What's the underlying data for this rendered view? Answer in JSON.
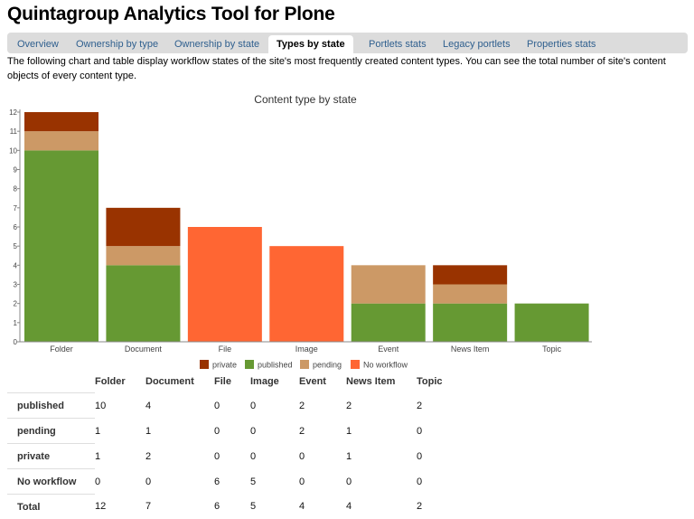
{
  "page": {
    "title": "Quintagroup Analytics Tool for Plone",
    "description": "The following chart and table display workflow states of the site's most frequently created content types. You can see the total number of site's content objects of every content type."
  },
  "tabs": [
    {
      "label": "Overview",
      "active": false
    },
    {
      "label": "Ownership by type",
      "active": false
    },
    {
      "label": "Ownership by state",
      "active": false
    },
    {
      "label": "Types by state",
      "active": true
    },
    {
      "label": "Portlets stats",
      "active": false
    },
    {
      "label": "Legacy portlets",
      "active": false
    },
    {
      "label": "Properties stats",
      "active": false
    }
  ],
  "chart_data": {
    "type": "bar",
    "stacked": true,
    "title": "Content type by state",
    "categories": [
      "Folder",
      "Document",
      "File",
      "Image",
      "Event",
      "News Item",
      "Topic"
    ],
    "series": [
      {
        "name": "published",
        "color": "#669933",
        "values": [
          10,
          4,
          0,
          0,
          2,
          2,
          2
        ]
      },
      {
        "name": "pending",
        "color": "#cc9966",
        "values": [
          1,
          1,
          0,
          0,
          2,
          1,
          0
        ]
      },
      {
        "name": "private",
        "color": "#993300",
        "values": [
          1,
          2,
          0,
          0,
          0,
          1,
          0
        ]
      },
      {
        "name": "No workflow",
        "color": "#ff6633",
        "values": [
          0,
          0,
          6,
          5,
          0,
          0,
          0
        ]
      }
    ],
    "legend_order": [
      "private",
      "published",
      "pending",
      "No workflow"
    ],
    "ylim": [
      0,
      12
    ],
    "yticks": [
      "0",
      "1",
      "2",
      "3",
      "4",
      "5",
      "6",
      "7",
      "8",
      "9",
      "10",
      "11",
      "12"
    ],
    "xlabel": "",
    "ylabel": "",
    "legend_position": "bottom"
  },
  "table": {
    "headers": [
      "",
      "Folder",
      "Document",
      "File",
      "Image",
      "Event",
      "News Item",
      "Topic"
    ],
    "rows": [
      {
        "label": "published",
        "values": [
          "10",
          "4",
          "0",
          "0",
          "2",
          "2",
          "2"
        ]
      },
      {
        "label": "pending",
        "values": [
          "1",
          "1",
          "0",
          "0",
          "2",
          "1",
          "0"
        ]
      },
      {
        "label": "private",
        "values": [
          "1",
          "2",
          "0",
          "0",
          "0",
          "1",
          "0"
        ]
      },
      {
        "label": "No workflow",
        "values": [
          "0",
          "0",
          "6",
          "5",
          "0",
          "0",
          "0"
        ]
      },
      {
        "label": "Total",
        "values": [
          "12",
          "7",
          "6",
          "5",
          "4",
          "4",
          "2"
        ]
      }
    ]
  }
}
